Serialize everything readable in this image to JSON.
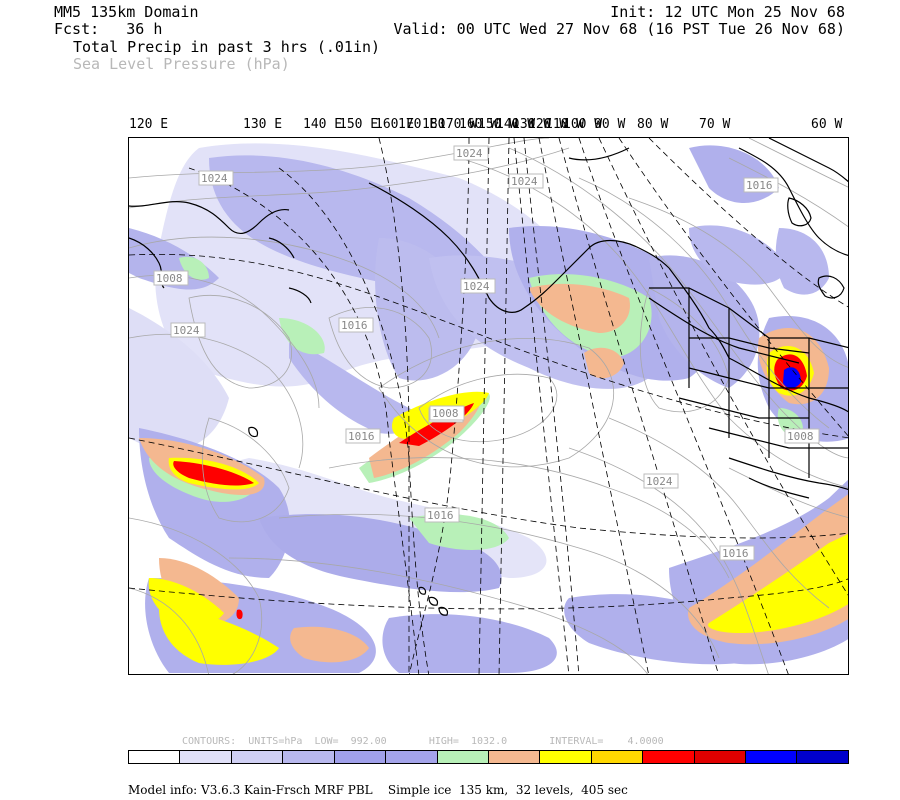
{
  "header": {
    "domain_label": "MM5 135km Domain",
    "fcst_label": "Fcst:   36 h",
    "field_primary": "Total Precip in past 3 hrs (.01in)",
    "field_secondary": "Sea Level Pressure (hPa)",
    "init": "Init: 12 UTC Mon 25 Nov 68",
    "valid": "Valid: 00 UTC Wed 27 Nov 68 (16 PST Tue 26 Nov 68)"
  },
  "longitude_labels": [
    "120 E",
    "130 E",
    "140 E",
    "150 E",
    "160 E",
    "170 E",
    "180",
    "170 W",
    "160 W",
    "150 W",
    "140 W",
    "130 W",
    "120 W",
    "110 W",
    "100 W",
    "90 W",
    "80 W",
    "70 W",
    "60 W"
  ],
  "pressure_labels": [
    "1024",
    "1024",
    "1024",
    "1008",
    "1024",
    "1016",
    "1008",
    "1016",
    "1024",
    "1016",
    "1008",
    "1016",
    "1024",
    "1016",
    "1008"
  ],
  "contour_info": {
    "text": "CONTOURS:  UNITS=hPa  LOW=  992.00       HIGH=  1032.0       INTERVAL=    4.0000",
    "units": "hPa",
    "low": "992.00",
    "high": "1032.0",
    "interval": "4.0000"
  },
  "colorbar": [
    "#ffffff",
    "#e0e0f8",
    "#d0d0f4",
    "#b8b8ee",
    "#a0a0ea",
    "#a4a4ea",
    "#b8f0b8",
    "#f4b890",
    "#ffff00",
    "#ffd800",
    "#ff0000",
    "#e00000",
    "#0000ff",
    "#0000cc"
  ],
  "footer": {
    "model_info": "Model info: V3.6.3 Kain-Frsch MRF PBL    Simple ice  135 km,  32 levels,  405 sec"
  }
}
